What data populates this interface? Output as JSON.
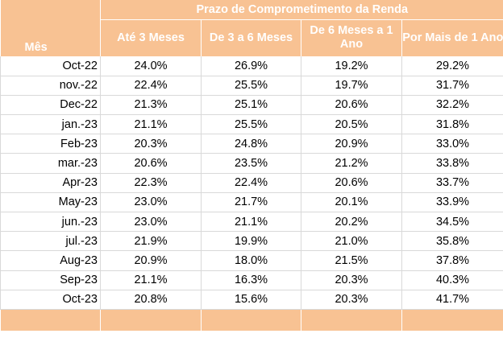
{
  "header": {
    "group_title": "Prazo de Comprometimento da Renda",
    "month_label": "Mês",
    "columns": [
      "Até 3 Meses",
      "De 3 a 6 Meses",
      "De 6 Meses a 1 Ano",
      "Por Mais de 1 Ano"
    ]
  },
  "rows": [
    {
      "month": "Oct-22",
      "values": [
        "24.0%",
        "26.9%",
        "19.2%",
        "29.2%"
      ]
    },
    {
      "month": "nov.-22",
      "values": [
        "22.4%",
        "25.5%",
        "19.7%",
        "31.7%"
      ]
    },
    {
      "month": "Dec-22",
      "values": [
        "21.3%",
        "25.1%",
        "20.6%",
        "32.2%"
      ]
    },
    {
      "month": "jan.-23",
      "values": [
        "21.1%",
        "25.5%",
        "20.5%",
        "31.8%"
      ]
    },
    {
      "month": "Feb-23",
      "values": [
        "20.3%",
        "24.8%",
        "20.9%",
        "33.0%"
      ]
    },
    {
      "month": "mar.-23",
      "values": [
        "20.6%",
        "23.5%",
        "21.2%",
        "33.8%"
      ]
    },
    {
      "month": "Apr-23",
      "values": [
        "22.3%",
        "22.4%",
        "20.6%",
        "33.7%"
      ]
    },
    {
      "month": "May-23",
      "values": [
        "23.0%",
        "21.7%",
        "20.1%",
        "33.9%"
      ]
    },
    {
      "month": "jun.-23",
      "values": [
        "23.0%",
        "21.1%",
        "20.2%",
        "34.5%"
      ]
    },
    {
      "month": "jul.-23",
      "values": [
        "21.9%",
        "19.9%",
        "21.0%",
        "35.8%"
      ]
    },
    {
      "month": "Aug-23",
      "values": [
        "20.9%",
        "18.0%",
        "21.5%",
        "37.8%"
      ]
    },
    {
      "month": "Sep-23",
      "values": [
        "21.1%",
        "16.3%",
        "20.3%",
        "40.3%"
      ]
    },
    {
      "month": "Oct-23",
      "values": [
        "20.8%",
        "15.6%",
        "20.3%",
        "41.7%"
      ]
    }
  ],
  "colors": {
    "header_bg": "#f8c293",
    "header_text": "#ffffff",
    "grid": "#d9d9d9"
  }
}
